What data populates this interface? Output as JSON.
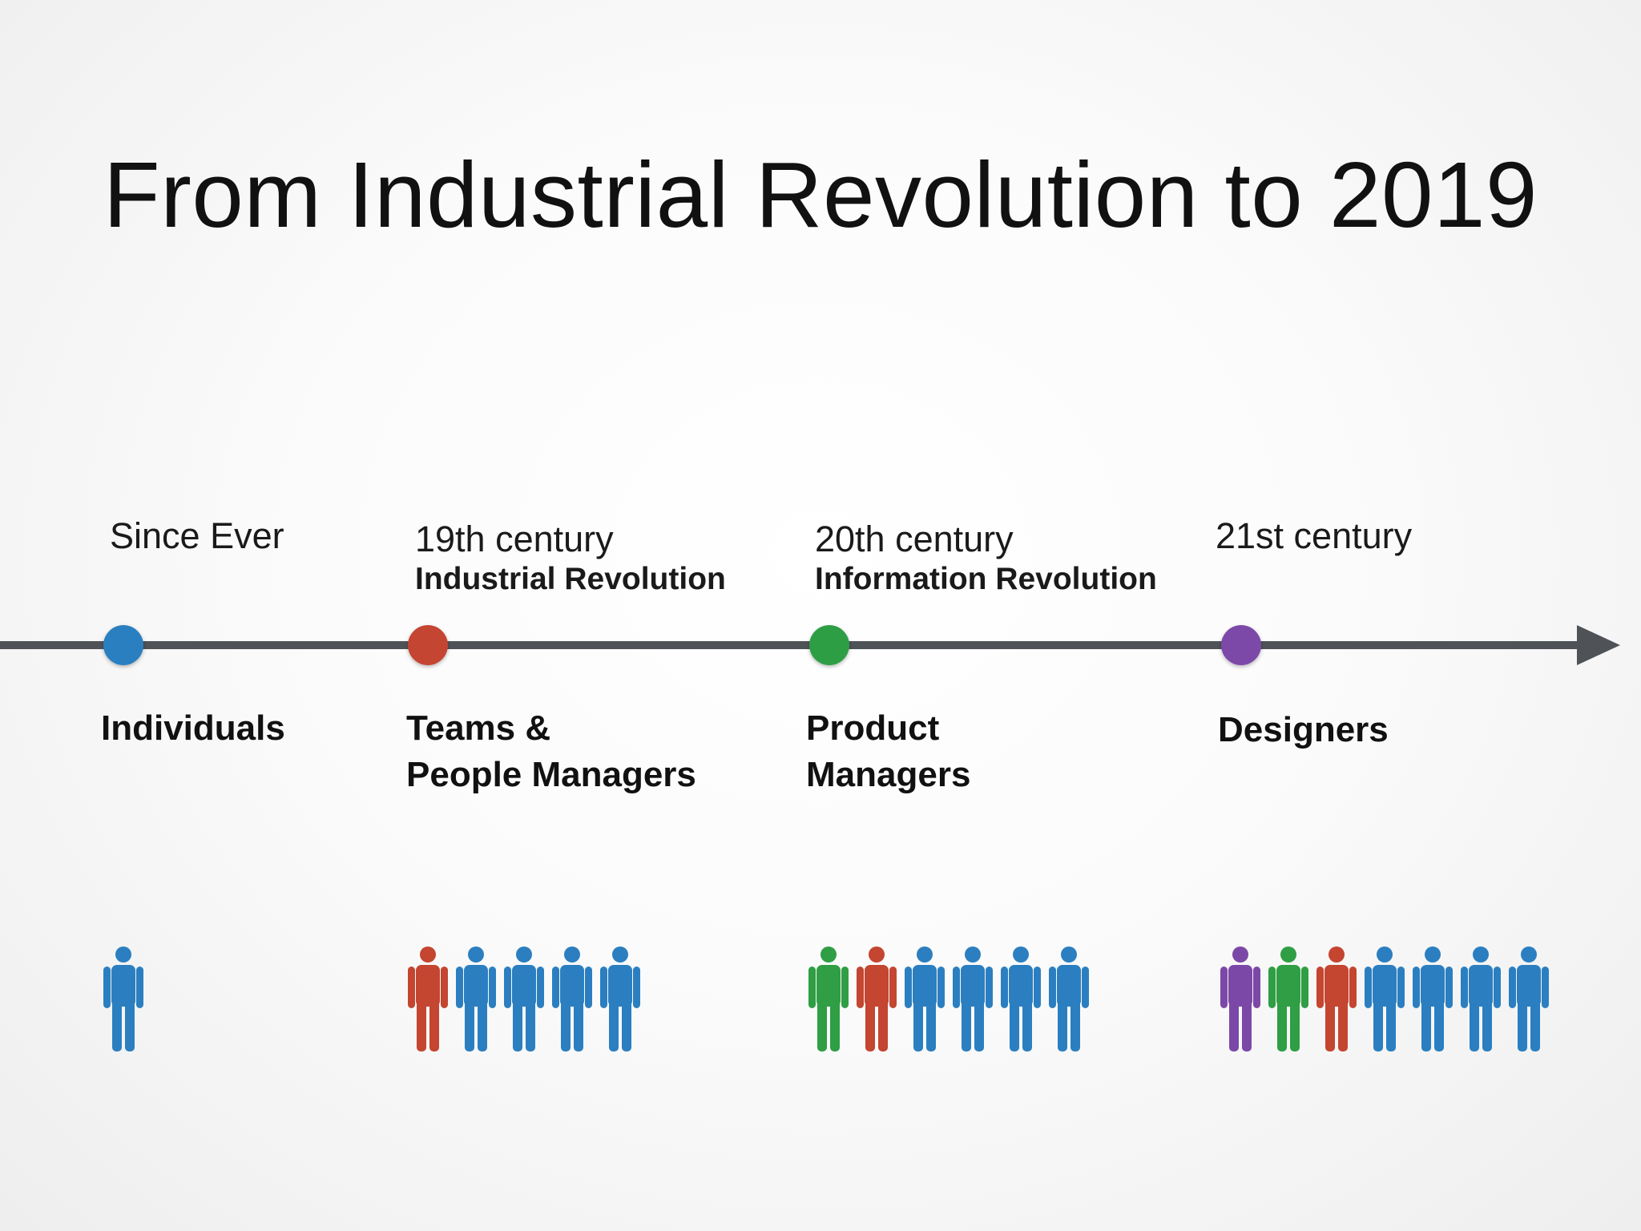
{
  "title": "From Industrial Revolution to 2019",
  "colors": {
    "blue": "#2b7fc0",
    "red": "#c44530",
    "green": "#2f9e44",
    "purple": "#7c48a8",
    "axis": "#4f5357"
  },
  "timeline": [
    {
      "label": "Since Ever",
      "sublabel": "",
      "role_lines": [
        "Individuals",
        ""
      ],
      "dot_color": "blue",
      "people": [
        "blue"
      ]
    },
    {
      "label": "19th century",
      "sublabel": "Industrial Revolution",
      "role_lines": [
        "Teams &",
        "People Managers"
      ],
      "dot_color": "red",
      "people": [
        "red",
        "blue",
        "blue",
        "blue",
        "blue"
      ]
    },
    {
      "label": "20th century",
      "sublabel": "Information Revolution",
      "role_lines": [
        "Product",
        "Managers"
      ],
      "dot_color": "green",
      "people": [
        "green",
        "red",
        "blue",
        "blue",
        "blue",
        "blue"
      ]
    },
    {
      "label": "21st century",
      "sublabel": "",
      "role_lines": [
        "Designers",
        ""
      ],
      "dot_color": "purple",
      "people": [
        "purple",
        "green",
        "red",
        "blue",
        "blue",
        "blue",
        "blue"
      ]
    }
  ]
}
